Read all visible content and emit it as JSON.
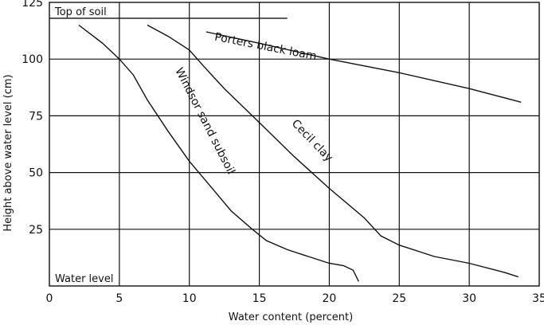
{
  "chart_data": {
    "type": "line",
    "title": "",
    "xlabel": "Water content (percent)",
    "ylabel": "Height above water level (cm)",
    "xlim": [
      0,
      35
    ],
    "ylim": [
      0,
      125
    ],
    "xticks": [
      0,
      5,
      10,
      15,
      20,
      25,
      30,
      35
    ],
    "yticks": [
      25,
      50,
      75,
      100,
      125
    ],
    "grid": true,
    "annotations": [
      {
        "text": "Top of soil",
        "x": 0,
        "y": 118
      },
      {
        "text": "Water level",
        "x": 0,
        "y": 0
      }
    ],
    "reference_lines": [
      {
        "name": "top-of-soil",
        "x": [
          0,
          17
        ],
        "y": [
          118,
          118
        ]
      }
    ],
    "series": [
      {
        "name": "Windsor sand subsoil",
        "x": [
          2.1,
          3.8,
          5.0,
          6.0,
          7.0,
          8.5,
          10.0,
          11.5,
          13.0,
          14.5,
          15.5,
          17.0,
          18.5,
          20.0,
          21.0,
          21.7,
          22.1
        ],
        "y": [
          115,
          107,
          100,
          93,
          82,
          68,
          55,
          44,
          33,
          25,
          20,
          16,
          13,
          10,
          9,
          7,
          2
        ]
      },
      {
        "name": "Cecil clay",
        "x": [
          7.0,
          8.5,
          10.0,
          11.0,
          12.5,
          15.0,
          17.5,
          20.0,
          22.5,
          23.7,
          25.0,
          27.5,
          30.0,
          32.5,
          33.5
        ],
        "y": [
          115,
          110,
          104,
          97,
          87,
          72,
          57,
          43,
          30,
          22,
          18,
          13,
          10,
          6,
          4
        ]
      },
      {
        "name": "Porters black loam",
        "x": [
          11.2,
          15.0,
          20.0,
          25.0,
          30.0,
          33.7
        ],
        "y": [
          112,
          107,
          100,
          94,
          87,
          81
        ]
      }
    ]
  }
}
